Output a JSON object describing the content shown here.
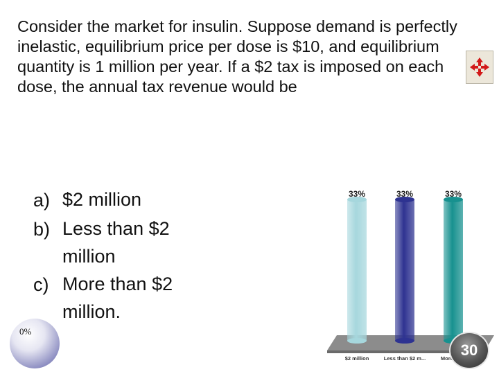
{
  "question": "Consider the market for insulin.  Suppose demand is perfectly inelastic, equilibrium price per dose is $10, and equilibrium quantity is 1 million per year.  If a $2 tax is imposed on each dose, the annual tax revenue would be",
  "answers": [
    {
      "letter": "a)",
      "text": "$2 million"
    },
    {
      "letter": "b)",
      "text": "Less than $2 million"
    },
    {
      "letter": "c)",
      "text": "More than $2 million."
    }
  ],
  "response_percent": "0%",
  "timer": "30",
  "move_icon": "move-arrows-icon",
  "chart_data": {
    "type": "bar",
    "categories": [
      "$2 million",
      "Less than $2 m...",
      "More..."
    ],
    "values": [
      33,
      33,
      33
    ],
    "data_labels": [
      "33%",
      "33%",
      "33%"
    ],
    "colors": [
      "#a6d7dd",
      "#2e3391",
      "#17918f"
    ],
    "ylim": [
      0,
      33
    ]
  }
}
